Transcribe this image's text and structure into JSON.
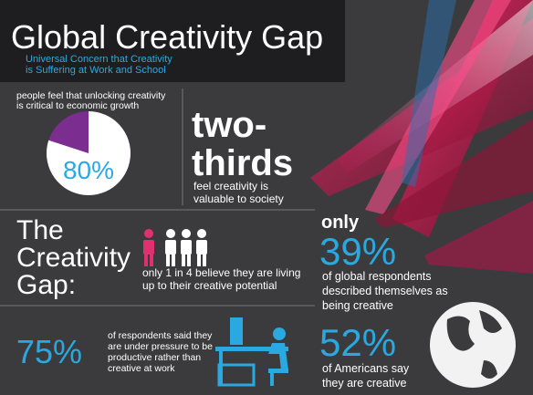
{
  "header": {
    "title": "Global Creativity Gap",
    "subtitle": [
      "Universal Concern that Creativity",
      "is Suffering at Work and School"
    ]
  },
  "pie_stat": {
    "caption": [
      "people feel that unlocking creativity",
      "is critical to economic growth"
    ],
    "value": 80,
    "label": "80%"
  },
  "two_thirds": {
    "headline": [
      "two-",
      "thirds"
    ],
    "caption": [
      "feel creativity is",
      "valuable to society"
    ]
  },
  "gap": {
    "headline": [
      "The",
      "Creativity",
      "Gap:"
    ],
    "caption": [
      "only 1 in 4 believe they are living",
      "up to their creative potential"
    ]
  },
  "pressure": {
    "value": "75%",
    "caption": [
      "of respondents said they",
      "are under pressure to be",
      "productive rather than",
      "creative at work"
    ]
  },
  "global": {
    "prefix": "only",
    "value": "39%",
    "caption": [
      "of global respondents",
      "described themselves as",
      "being creative"
    ]
  },
  "americans": {
    "value": "52%",
    "caption": [
      "of Americans say",
      "they are creative"
    ]
  }
}
